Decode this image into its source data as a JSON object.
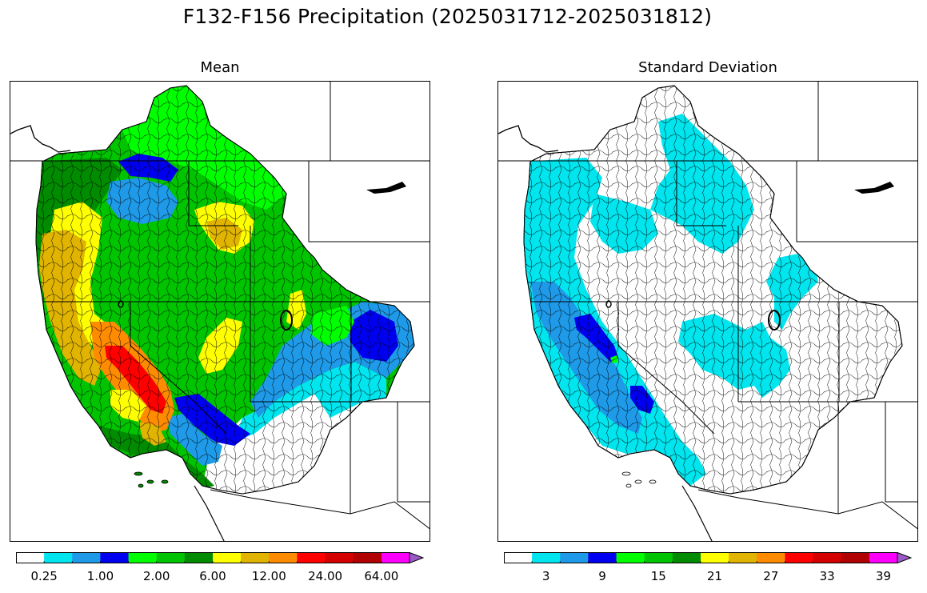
{
  "figure": {
    "suptitle": "F132-F156 Precipitation (2025031712-2025031812)"
  },
  "panels": [
    {
      "title": "Mean",
      "colorbar": {
        "colors": [
          "#ffffff",
          "#00e5ee",
          "#1e9ae8",
          "#0000f0",
          "#00ff00",
          "#00c400",
          "#008b00",
          "#ffff00",
          "#e0b400",
          "#ff8c00",
          "#ff0000",
          "#d40000",
          "#b00000",
          "#ff00ff",
          "#9b59c9"
        ],
        "tick_labels": [
          "0.25",
          "1.00",
          "2.00",
          "6.00",
          "12.00",
          "24.00",
          "64.00"
        ],
        "tick_boundaries": [
          1,
          3,
          5,
          7,
          9,
          11,
          13
        ],
        "extend": "max"
      },
      "region_fills": {
        "coast_north": "#008b00",
        "coast_yellow": "#ffff00",
        "coast_gold": "#e0b400",
        "sierra_orange": "#ff8c00",
        "sierra_red": "#ff0000",
        "interior": "#00c400",
        "north_bright": "#00ff00",
        "idaho_blue": "#0000f0",
        "idaho_lightblue": "#1e9ae8",
        "montana_yellow": "#ffff00",
        "colorado_lightblue": "#1e9ae8",
        "colorado_blue": "#0000f0",
        "utah_cyan": "#00e5ee",
        "socal_green": "#008b00",
        "south_blue": "#0000f0"
      }
    },
    {
      "title": "Standard Deviation",
      "colorbar": {
        "colors": [
          "#ffffff",
          "#00e5ee",
          "#1e9ae8",
          "#0000f0",
          "#00ff00",
          "#00c400",
          "#008b00",
          "#ffff00",
          "#e0b400",
          "#ff8c00",
          "#ff0000",
          "#d40000",
          "#b00000",
          "#ff00ff",
          "#9b59c9"
        ],
        "tick_labels": [
          "3",
          "9",
          "15",
          "21",
          "27",
          "33",
          "39"
        ],
        "tick_boundaries": [
          1.5,
          3.5,
          5.5,
          7.5,
          9.5,
          11.5,
          13.5
        ],
        "extend": "max"
      },
      "region_fills": {
        "coast": "#00e5ee",
        "coast_blue": "#1e9ae8",
        "sierra_blue": "#0000f0",
        "north_cyan": "#00e5ee",
        "east_cyan": "#00e5ee",
        "interior": "#ffffff"
      }
    }
  ]
}
